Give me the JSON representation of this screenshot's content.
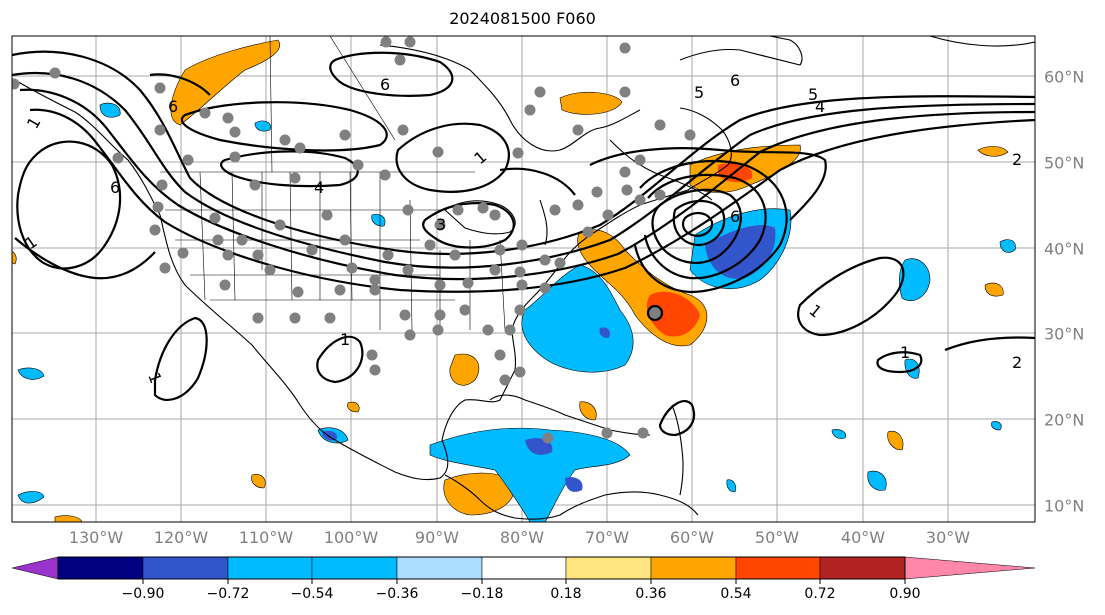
{
  "title": "2024081500 F060",
  "map": {
    "lon_labels": [
      "130°W",
      "120°W",
      "110°W",
      "100°W",
      "90°W",
      "80°W",
      "70°W",
      "60°W",
      "50°W",
      "40°W",
      "30°W"
    ],
    "lat_labels": [
      "60°N",
      "50°N",
      "40°N",
      "30°N",
      "20°N",
      "10°N"
    ],
    "contour_labels": [
      "1",
      "1",
      "1",
      "1",
      "1",
      "1",
      "1",
      "2",
      "2",
      "3",
      "4",
      "4",
      "5",
      "5",
      "6",
      "6",
      "6",
      "6",
      "6"
    ]
  },
  "colorbar": {
    "ticks": [
      "−0.90",
      "−0.72",
      "−0.54",
      "−0.36",
      "−0.18",
      "0.18",
      "0.36",
      "0.54",
      "0.72",
      "0.90"
    ],
    "colors": {
      "under": "#9933cc",
      "bins": [
        "#000080",
        "#3355cc",
        "#00bbff",
        "#aaddff",
        "#ffffff",
        "#ffe680",
        "#ffa500",
        "#ff4500",
        "#b22222"
      ],
      "over": "#ff88aa"
    }
  },
  "colors": {
    "gray_dot": "#808080",
    "contour": "#000000",
    "grid": "#aaaaaa",
    "orange": "#ffa500",
    "blue": "#00bbff",
    "dark_blue": "#3355cc",
    "red": "#ff4500"
  }
}
